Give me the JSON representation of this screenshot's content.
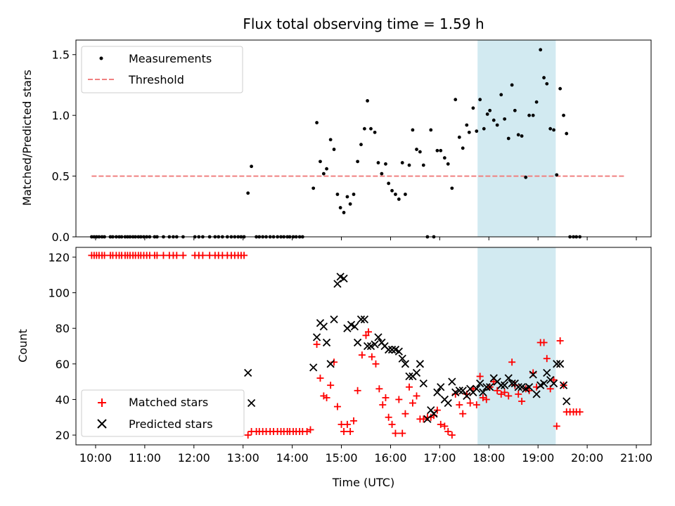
{
  "chart_data": {
    "type": "scatter",
    "title": "Flux total observing time = 1.59 h",
    "xlabel": "Time (UTC)",
    "xlim": [
      9.6,
      21.3
    ],
    "x_ticks": [
      10,
      11,
      12,
      13,
      14,
      15,
      16,
      17,
      18,
      19,
      20,
      21
    ],
    "x_tick_labels": [
      "10:00",
      "11:00",
      "12:00",
      "13:00",
      "14:00",
      "15:00",
      "16:00",
      "17:00",
      "18:00",
      "19:00",
      "20:00",
      "21:00"
    ],
    "highlight_span": [
      17.77,
      19.36
    ],
    "colors": {
      "highlight": "#add8e6",
      "threshold": "#f08080",
      "matched": "#ff0000",
      "predicted": "#000000",
      "measurement": "#000000"
    },
    "top": {
      "ylabel": "Matched/Predicted stars",
      "ylim": [
        0,
        1.62
      ],
      "y_ticks": [
        0.0,
        0.5,
        1.0,
        1.5
      ],
      "y_tick_labels": [
        "0.0",
        "0.5",
        "1.0",
        "1.5"
      ],
      "legend": [
        "Measurements",
        "Threshold"
      ],
      "threshold": {
        "value": 0.5,
        "x_range": [
          9.92,
          20.78
        ]
      },
      "measurements": [
        [
          9.92,
          0
        ],
        [
          9.97,
          0
        ],
        [
          10.02,
          0
        ],
        [
          10.07,
          0
        ],
        [
          10.13,
          0
        ],
        [
          10.18,
          0
        ],
        [
          10.3,
          0
        ],
        [
          10.35,
          0
        ],
        [
          10.42,
          0
        ],
        [
          10.48,
          0
        ],
        [
          10.53,
          0
        ],
        [
          10.6,
          0
        ],
        [
          10.65,
          0
        ],
        [
          10.7,
          0
        ],
        [
          10.76,
          0
        ],
        [
          10.81,
          0
        ],
        [
          10.87,
          0
        ],
        [
          10.92,
          0
        ],
        [
          10.98,
          0
        ],
        [
          11.04,
          0
        ],
        [
          11.1,
          0
        ],
        [
          11.2,
          0
        ],
        [
          11.25,
          0
        ],
        [
          11.38,
          0
        ],
        [
          11.5,
          0
        ],
        [
          11.58,
          0
        ],
        [
          11.65,
          0
        ],
        [
          11.78,
          0
        ],
        [
          12.02,
          0
        ],
        [
          12.1,
          0
        ],
        [
          12.18,
          0
        ],
        [
          12.32,
          0
        ],
        [
          12.43,
          0
        ],
        [
          12.5,
          0
        ],
        [
          12.58,
          0
        ],
        [
          12.68,
          0
        ],
        [
          12.76,
          0
        ],
        [
          12.83,
          0
        ],
        [
          12.9,
          0
        ],
        [
          12.96,
          0
        ],
        [
          13.02,
          0
        ],
        [
          13.1,
          0.36
        ],
        [
          13.17,
          0.58
        ],
        [
          13.27,
          0
        ],
        [
          13.33,
          0
        ],
        [
          13.4,
          0
        ],
        [
          13.47,
          0
        ],
        [
          13.55,
          0
        ],
        [
          13.62,
          0
        ],
        [
          13.7,
          0
        ],
        [
          13.77,
          0
        ],
        [
          13.83,
          0
        ],
        [
          13.9,
          0
        ],
        [
          13.95,
          0
        ],
        [
          14.02,
          0
        ],
        [
          14.08,
          0
        ],
        [
          14.15,
          0
        ],
        [
          14.21,
          0
        ],
        [
          14.43,
          0.4
        ],
        [
          14.5,
          0.94
        ],
        [
          14.57,
          0.62
        ],
        [
          14.64,
          0.52
        ],
        [
          14.7,
          0.56
        ],
        [
          14.78,
          0.8
        ],
        [
          14.85,
          0.72
        ],
        [
          14.92,
          0.35
        ],
        [
          14.98,
          0.24
        ],
        [
          15.05,
          0.2
        ],
        [
          15.12,
          0.33
        ],
        [
          15.18,
          0.27
        ],
        [
          15.25,
          0.35
        ],
        [
          15.33,
          0.62
        ],
        [
          15.4,
          0.76
        ],
        [
          15.47,
          0.89
        ],
        [
          15.53,
          1.12
        ],
        [
          15.6,
          0.89
        ],
        [
          15.68,
          0.86
        ],
        [
          15.75,
          0.61
        ],
        [
          15.82,
          0.52
        ],
        [
          15.9,
          0.6
        ],
        [
          15.96,
          0.44
        ],
        [
          16.03,
          0.38
        ],
        [
          16.1,
          0.35
        ],
        [
          16.17,
          0.31
        ],
        [
          16.24,
          0.61
        ],
        [
          16.3,
          0.35
        ],
        [
          16.38,
          0.59
        ],
        [
          16.45,
          0.88
        ],
        [
          16.53,
          0.72
        ],
        [
          16.6,
          0.7
        ],
        [
          16.67,
          0.59
        ],
        [
          16.75,
          0
        ],
        [
          16.82,
          0.88
        ],
        [
          16.88,
          0
        ],
        [
          16.95,
          0.71
        ],
        [
          17.02,
          0.71
        ],
        [
          17.1,
          0.65
        ],
        [
          17.17,
          0.6
        ],
        [
          17.25,
          0.4
        ],
        [
          17.32,
          1.13
        ],
        [
          17.4,
          0.82
        ],
        [
          17.47,
          0.73
        ],
        [
          17.55,
          0.92
        ],
        [
          17.6,
          0.86
        ],
        [
          17.68,
          1.06
        ],
        [
          17.75,
          0.87
        ],
        [
          17.82,
          1.13
        ],
        [
          17.9,
          0.89
        ],
        [
          17.97,
          1.01
        ],
        [
          18.02,
          1.04
        ],
        [
          18.1,
          0.96
        ],
        [
          18.17,
          0.92
        ],
        [
          18.25,
          1.17
        ],
        [
          18.32,
          0.97
        ],
        [
          18.4,
          0.81
        ],
        [
          18.47,
          1.25
        ],
        [
          18.53,
          1.04
        ],
        [
          18.6,
          0.84
        ],
        [
          18.67,
          0.83
        ],
        [
          18.75,
          0.49
        ],
        [
          18.82,
          1.0
        ],
        [
          18.9,
          1.0
        ],
        [
          18.97,
          1.11
        ],
        [
          19.05,
          1.54
        ],
        [
          19.12,
          1.31
        ],
        [
          19.18,
          1.26
        ],
        [
          19.25,
          0.89
        ],
        [
          19.32,
          0.88
        ],
        [
          19.38,
          0.51
        ],
        [
          19.45,
          1.22
        ],
        [
          19.52,
          1.0
        ],
        [
          19.58,
          0.85
        ],
        [
          19.65,
          0
        ],
        [
          19.72,
          0
        ],
        [
          19.78,
          0
        ],
        [
          19.85,
          0
        ]
      ]
    },
    "bottom": {
      "ylabel": "Count",
      "ylim": [
        14.5,
        125.5
      ],
      "y_ticks": [
        20,
        40,
        60,
        80,
        100,
        120
      ],
      "y_tick_labels": [
        "20",
        "40",
        "60",
        "80",
        "100",
        "120"
      ],
      "legend": [
        "Matched stars",
        "Predicted stars"
      ],
      "matched": [
        [
          9.92,
          121
        ],
        [
          9.97,
          121
        ],
        [
          10.02,
          121
        ],
        [
          10.07,
          121
        ],
        [
          10.13,
          121
        ],
        [
          10.18,
          121
        ],
        [
          10.3,
          121
        ],
        [
          10.35,
          121
        ],
        [
          10.42,
          121
        ],
        [
          10.48,
          121
        ],
        [
          10.53,
          121
        ],
        [
          10.6,
          121
        ],
        [
          10.65,
          121
        ],
        [
          10.7,
          121
        ],
        [
          10.76,
          121
        ],
        [
          10.81,
          121
        ],
        [
          10.87,
          121
        ],
        [
          10.92,
          121
        ],
        [
          10.98,
          121
        ],
        [
          11.04,
          121
        ],
        [
          11.1,
          121
        ],
        [
          11.2,
          121
        ],
        [
          11.25,
          121
        ],
        [
          11.38,
          121
        ],
        [
          11.5,
          121
        ],
        [
          11.58,
          121
        ],
        [
          11.65,
          121
        ],
        [
          11.78,
          121
        ],
        [
          12.02,
          121
        ],
        [
          12.1,
          121
        ],
        [
          12.18,
          121
        ],
        [
          12.32,
          121
        ],
        [
          12.43,
          121
        ],
        [
          12.5,
          121
        ],
        [
          12.58,
          121
        ],
        [
          12.68,
          121
        ],
        [
          12.76,
          121
        ],
        [
          12.83,
          121
        ],
        [
          12.9,
          121
        ],
        [
          12.96,
          121
        ],
        [
          13.02,
          121
        ],
        [
          13.1,
          20
        ],
        [
          13.17,
          22
        ],
        [
          13.27,
          22
        ],
        [
          13.33,
          22
        ],
        [
          13.4,
          22
        ],
        [
          13.47,
          22
        ],
        [
          13.55,
          22
        ],
        [
          13.62,
          22
        ],
        [
          13.7,
          22
        ],
        [
          13.77,
          22
        ],
        [
          13.83,
          22
        ],
        [
          13.9,
          22
        ],
        [
          13.95,
          22
        ],
        [
          14.02,
          22
        ],
        [
          14.08,
          22
        ],
        [
          14.15,
          22
        ],
        [
          14.21,
          22
        ],
        [
          14.3,
          22
        ],
        [
          14.37,
          23
        ],
        [
          14.5,
          71
        ],
        [
          14.57,
          52
        ],
        [
          14.64,
          42
        ],
        [
          14.7,
          41
        ],
        [
          14.78,
          48
        ],
        [
          14.85,
          61
        ],
        [
          14.92,
          36
        ],
        [
          15.0,
          26
        ],
        [
          15.05,
          22
        ],
        [
          15.12,
          26
        ],
        [
          15.18,
          22
        ],
        [
          15.25,
          28
        ],
        [
          15.33,
          45
        ],
        [
          15.42,
          65
        ],
        [
          15.5,
          76
        ],
        [
          15.55,
          78
        ],
        [
          15.62,
          64
        ],
        [
          15.7,
          60
        ],
        [
          15.77,
          46
        ],
        [
          15.84,
          37
        ],
        [
          15.9,
          41
        ],
        [
          15.96,
          30
        ],
        [
          16.03,
          26
        ],
        [
          16.1,
          21
        ],
        [
          16.17,
          40
        ],
        [
          16.24,
          21
        ],
        [
          16.3,
          32
        ],
        [
          16.38,
          47
        ],
        [
          16.45,
          38
        ],
        [
          16.53,
          42
        ],
        [
          16.6,
          29
        ],
        [
          16.67,
          29
        ],
        [
          16.75,
          30
        ],
        [
          16.82,
          30
        ],
        [
          16.88,
          31
        ],
        [
          16.95,
          34
        ],
        [
          17.02,
          26
        ],
        [
          17.1,
          25
        ],
        [
          17.17,
          22
        ],
        [
          17.25,
          20
        ],
        [
          17.32,
          43
        ],
        [
          17.4,
          37
        ],
        [
          17.47,
          32
        ],
        [
          17.55,
          43
        ],
        [
          17.62,
          38
        ],
        [
          17.68,
          46
        ],
        [
          17.75,
          37
        ],
        [
          17.82,
          53
        ],
        [
          17.88,
          41
        ],
        [
          17.95,
          40
        ],
        [
          18.02,
          47
        ],
        [
          18.1,
          50
        ],
        [
          18.17,
          45
        ],
        [
          18.25,
          43
        ],
        [
          18.32,
          44
        ],
        [
          18.4,
          42
        ],
        [
          18.47,
          61
        ],
        [
          18.53,
          48
        ],
        [
          18.6,
          43
        ],
        [
          18.67,
          39
        ],
        [
          18.75,
          46
        ],
        [
          18.82,
          45
        ],
        [
          18.9,
          55
        ],
        [
          18.97,
          47
        ],
        [
          19.05,
          72
        ],
        [
          19.12,
          72
        ],
        [
          19.18,
          63
        ],
        [
          19.25,
          46
        ],
        [
          19.32,
          51
        ],
        [
          19.38,
          25
        ],
        [
          19.45,
          73
        ],
        [
          19.52,
          48
        ],
        [
          19.58,
          33
        ],
        [
          19.65,
          33
        ],
        [
          19.72,
          33
        ],
        [
          19.78,
          33
        ],
        [
          19.85,
          33
        ]
      ],
      "predicted": [
        [
          13.1,
          55
        ],
        [
          13.17,
          38
        ],
        [
          14.43,
          58
        ],
        [
          14.5,
          75
        ],
        [
          14.57,
          83
        ],
        [
          14.64,
          81
        ],
        [
          14.7,
          72
        ],
        [
          14.78,
          60
        ],
        [
          14.85,
          85
        ],
        [
          14.92,
          105
        ],
        [
          14.98,
          109
        ],
        [
          15.05,
          108
        ],
        [
          15.12,
          80
        ],
        [
          15.2,
          82
        ],
        [
          15.27,
          81
        ],
        [
          15.33,
          72
        ],
        [
          15.4,
          85
        ],
        [
          15.47,
          85
        ],
        [
          15.53,
          70
        ],
        [
          15.6,
          70
        ],
        [
          15.68,
          71
        ],
        [
          15.75,
          75
        ],
        [
          15.82,
          72
        ],
        [
          15.88,
          70
        ],
        [
          15.96,
          68
        ],
        [
          16.03,
          68
        ],
        [
          16.1,
          68
        ],
        [
          16.17,
          67
        ],
        [
          16.24,
          63
        ],
        [
          16.3,
          60
        ],
        [
          16.38,
          53
        ],
        [
          16.45,
          53
        ],
        [
          16.53,
          55
        ],
        [
          16.6,
          60
        ],
        [
          16.67,
          49
        ],
        [
          16.75,
          29
        ],
        [
          16.82,
          34
        ],
        [
          16.88,
          32
        ],
        [
          16.95,
          44
        ],
        [
          17.02,
          47
        ],
        [
          17.1,
          40
        ],
        [
          17.17,
          38
        ],
        [
          17.25,
          50
        ],
        [
          17.32,
          44
        ],
        [
          17.4,
          45
        ],
        [
          17.47,
          45
        ],
        [
          17.55,
          42
        ],
        [
          17.62,
          46
        ],
        [
          17.68,
          44
        ],
        [
          17.75,
          46
        ],
        [
          17.82,
          49
        ],
        [
          17.88,
          44
        ],
        [
          17.95,
          47
        ],
        [
          18.02,
          47
        ],
        [
          18.1,
          52
        ],
        [
          18.17,
          50
        ],
        [
          18.25,
          48
        ],
        [
          18.32,
          48
        ],
        [
          18.4,
          52
        ],
        [
          18.47,
          49
        ],
        [
          18.53,
          49
        ],
        [
          18.6,
          47
        ],
        [
          18.67,
          47
        ],
        [
          18.75,
          46
        ],
        [
          18.82,
          47
        ],
        [
          18.9,
          54
        ],
        [
          18.97,
          43
        ],
        [
          19.05,
          48
        ],
        [
          19.12,
          49
        ],
        [
          19.18,
          55
        ],
        [
          19.25,
          51
        ],
        [
          19.32,
          49
        ],
        [
          19.38,
          60
        ],
        [
          19.45,
          60
        ],
        [
          19.52,
          48
        ],
        [
          19.58,
          39
        ]
      ]
    }
  }
}
